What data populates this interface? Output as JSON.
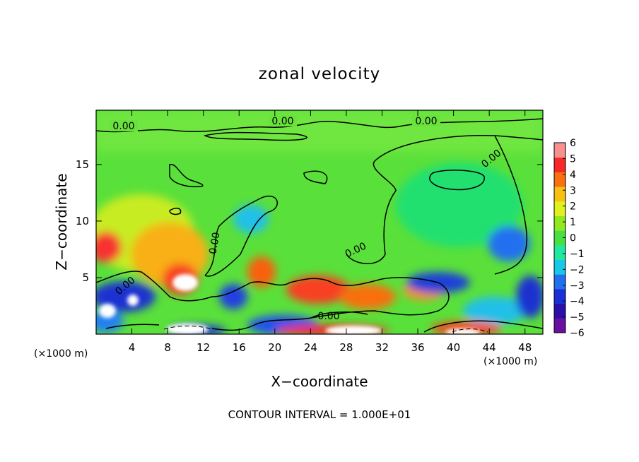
{
  "chart_data": {
    "type": "heatmap",
    "title": "zonal velocity",
    "xlabel": "X−coordinate",
    "ylabel": "Z−coordinate",
    "x_unit_left": "(×1000 m)",
    "x_unit_right": "(×1000 m)",
    "xlim": [
      0,
      50
    ],
    "ylim": [
      0,
      19.8
    ],
    "x_ticks": [
      4,
      8,
      12,
      16,
      20,
      24,
      28,
      32,
      36,
      40,
      44,
      48
    ],
    "y_ticks": [
      5,
      10,
      15
    ],
    "colorbar": {
      "range": [
        -6,
        6
      ],
      "ticks": [
        6,
        5,
        4,
        3,
        2,
        1,
        0,
        -1,
        -2,
        -3,
        -4,
        -5,
        -6
      ],
      "colors": [
        "#6a0fa0",
        "#2a10a8",
        "#1a2fd8",
        "#2070f0",
        "#18c8e8",
        "#20e8a0",
        "#48e040",
        "#90e820",
        "#e0f020",
        "#f8c010",
        "#f87010",
        "#f82828",
        "#f89090"
      ]
    },
    "contour_labels": [
      "0.00",
      "0.00",
      "0.00",
      "0.00",
      "0.00",
      "0.00",
      "0.00",
      "0.00"
    ],
    "footer": "CONTOUR INTERVAL = 1.000E+01"
  }
}
